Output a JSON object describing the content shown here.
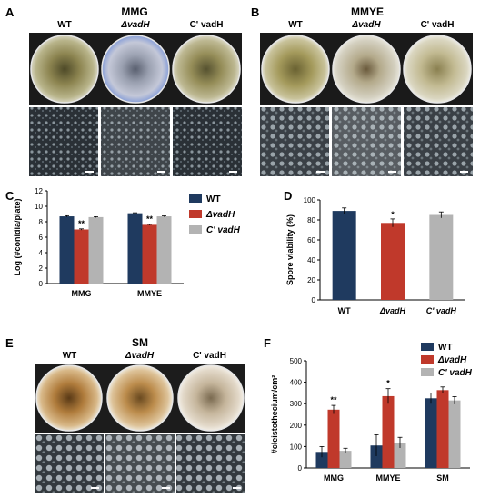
{
  "figure": {
    "panels": {
      "A": {
        "letter": "A",
        "title": "MMG",
        "strains": [
          "WT",
          "ΔvadH",
          "C' vadH"
        ]
      },
      "B": {
        "letter": "B",
        "title": "MMYE",
        "strains": [
          "WT",
          "ΔvadH",
          "C' vadH"
        ]
      },
      "C": {
        "letter": "C"
      },
      "D": {
        "letter": "D"
      },
      "E": {
        "letter": "E",
        "title": "SM",
        "strains": [
          "WT",
          "ΔvadH",
          "C' vadH"
        ]
      },
      "F": {
        "letter": "F"
      }
    }
  },
  "colors": {
    "wt": "#1f3a5f",
    "mutant": "#c0392b",
    "complement": "#b3b3b3"
  },
  "chart_data": [
    {
      "panel": "C",
      "type": "bar",
      "ylabel": "Log (#conidia/plate)",
      "ylim": [
        0,
        12
      ],
      "yticks": [
        "0",
        "2",
        "4",
        "6",
        "8",
        "10",
        "12"
      ],
      "categories": [
        "MMG",
        "MMYE"
      ],
      "legend": "right",
      "series": [
        {
          "name": "WT",
          "values": [
            8.7,
            9.1
          ],
          "errors": [
            0.08,
            0.06
          ]
        },
        {
          "name": "ΔvadH",
          "values": [
            7.0,
            7.6
          ],
          "errors": [
            0.08,
            0.06
          ]
        },
        {
          "name": "C' vadH",
          "values": [
            8.6,
            8.7
          ],
          "errors": [
            0.06,
            0.06
          ]
        }
      ],
      "annotations": [
        {
          "category": "MMG",
          "series": 1,
          "text": "**"
        },
        {
          "category": "MMYE",
          "series": 1,
          "text": "**"
        }
      ]
    },
    {
      "panel": "D",
      "type": "bar",
      "ylabel": "Spore viability (%)",
      "ylim": [
        0,
        100
      ],
      "yticks": [
        "0",
        "20",
        "40",
        "60",
        "80",
        "100"
      ],
      "categories": [
        "WT",
        "ΔvadH",
        "C' vadH"
      ],
      "values": [
        89,
        77,
        85
      ],
      "errors": [
        3,
        4,
        3
      ],
      "annotations": [
        {
          "index": 1,
          "text": "*"
        }
      ]
    },
    {
      "panel": "F",
      "type": "bar",
      "ylabel": "#cleistothecium/cm²",
      "ylim": [
        0,
        500
      ],
      "yticks": [
        "0",
        "100",
        "200",
        "300",
        "400",
        "500"
      ],
      "categories": [
        "MMG",
        "MMYE",
        "SM"
      ],
      "legend": "top-right",
      "series": [
        {
          "name": "WT",
          "values": [
            75,
            105,
            325
          ],
          "errors": [
            25,
            50,
            25
          ]
        },
        {
          "name": "ΔvadH",
          "values": [
            272,
            335,
            363
          ],
          "errors": [
            20,
            35,
            15
          ]
        },
        {
          "name": "C' vadH",
          "values": [
            80,
            118,
            315
          ],
          "errors": [
            12,
            25,
            18
          ]
        }
      ],
      "annotations": [
        {
          "category": "MMG",
          "series": 1,
          "text": "**"
        },
        {
          "category": "MMYE",
          "series": 1,
          "text": "*"
        }
      ]
    }
  ]
}
